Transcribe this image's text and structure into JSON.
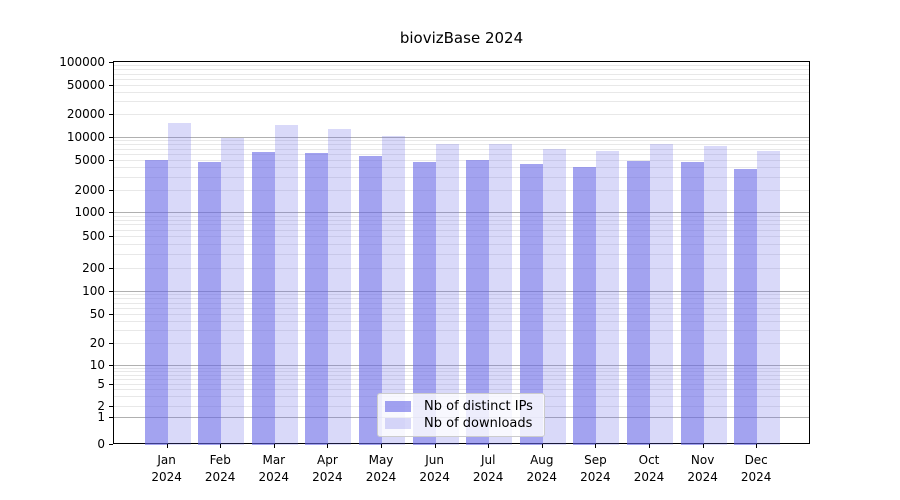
{
  "title": "biovizBase 2024",
  "chart_data": {
    "type": "bar",
    "title": "biovizBase 2024",
    "categories": [
      "Jan 2024",
      "Feb 2024",
      "Mar 2024",
      "Apr 2024",
      "May 2024",
      "Jun 2024",
      "Jul 2024",
      "Aug 2024",
      "Sep 2024",
      "Oct 2024",
      "Nov 2024",
      "Dec 2024"
    ],
    "series": [
      {
        "name": "Nb of distinct IPs",
        "color": "rgba(102,102,230,0.6)",
        "values": [
          5100,
          4850,
          6550,
          6300,
          5900,
          4850,
          5150,
          4500,
          4150,
          5050,
          4900,
          3900
        ]
      },
      {
        "name": "Nb of downloads",
        "color": "rgba(102,102,230,0.25)",
        "values": [
          15800,
          9900,
          14900,
          13300,
          10600,
          8300,
          8400,
          7250,
          6800,
          8400,
          7900,
          6700
        ]
      }
    ],
    "yscale": "symlog",
    "ylim": [
      0,
      100000
    ],
    "yticks": [
      0,
      1,
      2,
      5,
      10,
      20,
      50,
      100,
      200,
      500,
      1000,
      2000,
      5000,
      10000,
      20000,
      50000,
      100000
    ],
    "grid": "horizontal, major and minor",
    "legend_position": "lower center"
  },
  "xaxis": {
    "months": [
      "Jan",
      "Feb",
      "Mar",
      "Apr",
      "May",
      "Jun",
      "Jul",
      "Aug",
      "Sep",
      "Oct",
      "Nov",
      "Dec"
    ],
    "year": "2024"
  },
  "colors": {
    "bar_distinct_ips": "rgba(102,102,230,0.6)",
    "bar_downloads": "rgba(102,102,230,0.25)",
    "grid_major": "#b0b0b0",
    "grid_minor": "#e8e8e8",
    "axis": "#000000",
    "legend_border": "#cccccc"
  }
}
